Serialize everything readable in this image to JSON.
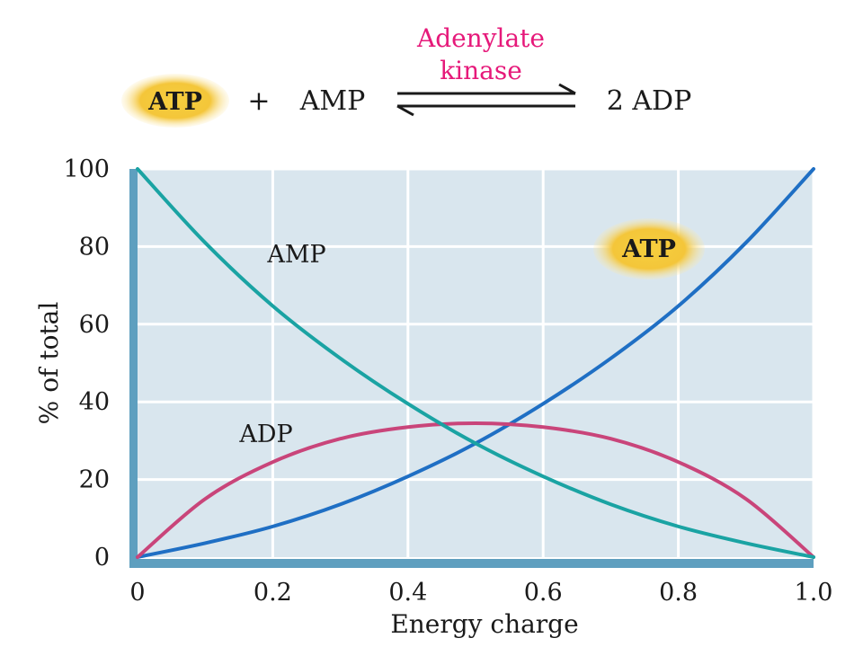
{
  "equation": {
    "reactant1": "ATP",
    "plus": "+",
    "reactant2": "AMP",
    "enzyme_line1": "Adenylate",
    "enzyme_line2": "kinase",
    "product": "2 ADP"
  },
  "colors": {
    "plot_bg": "#d9e6ee",
    "axis_bar": "#5e9fbf",
    "grid": "#ffffff",
    "atp": "#1f6fc4",
    "amp": "#1aa3a3",
    "adp": "#c9457a",
    "badge": "#f4c63a",
    "enzyme": "#e6197a"
  },
  "chart_data": {
    "type": "line",
    "xlabel": "Energy charge",
    "ylabel": "% of total",
    "xlim": [
      0,
      1
    ],
    "ylim": [
      0,
      100
    ],
    "xticks": [
      "0",
      "0.2",
      "0.4",
      "0.6",
      "0.8",
      "1.0"
    ],
    "yticks": [
      "0",
      "20",
      "40",
      "60",
      "80",
      "100"
    ],
    "grid": true,
    "x": [
      0,
      0.1,
      0.2,
      0.3,
      0.4,
      0.5,
      0.6,
      0.7,
      0.8,
      0.9,
      1.0
    ],
    "series": [
      {
        "name": "ATP",
        "color_key": "atp",
        "badge": true,
        "values": [
          0,
          3.6,
          7.9,
          13.6,
          20.8,
          29.3,
          39.5,
          51.2,
          64.7,
          81.0,
          100
        ]
      },
      {
        "name": "ADP",
        "color_key": "adp",
        "badge": false,
        "values": [
          0,
          15,
          24.5,
          30.5,
          33.5,
          34.5,
          33.5,
          30.5,
          24.5,
          15,
          0
        ]
      },
      {
        "name": "AMP",
        "color_key": "amp",
        "badge": false,
        "values": [
          100,
          81.0,
          64.7,
          51.2,
          39.5,
          29.3,
          20.8,
          13.6,
          7.9,
          3.6,
          0
        ]
      }
    ]
  }
}
